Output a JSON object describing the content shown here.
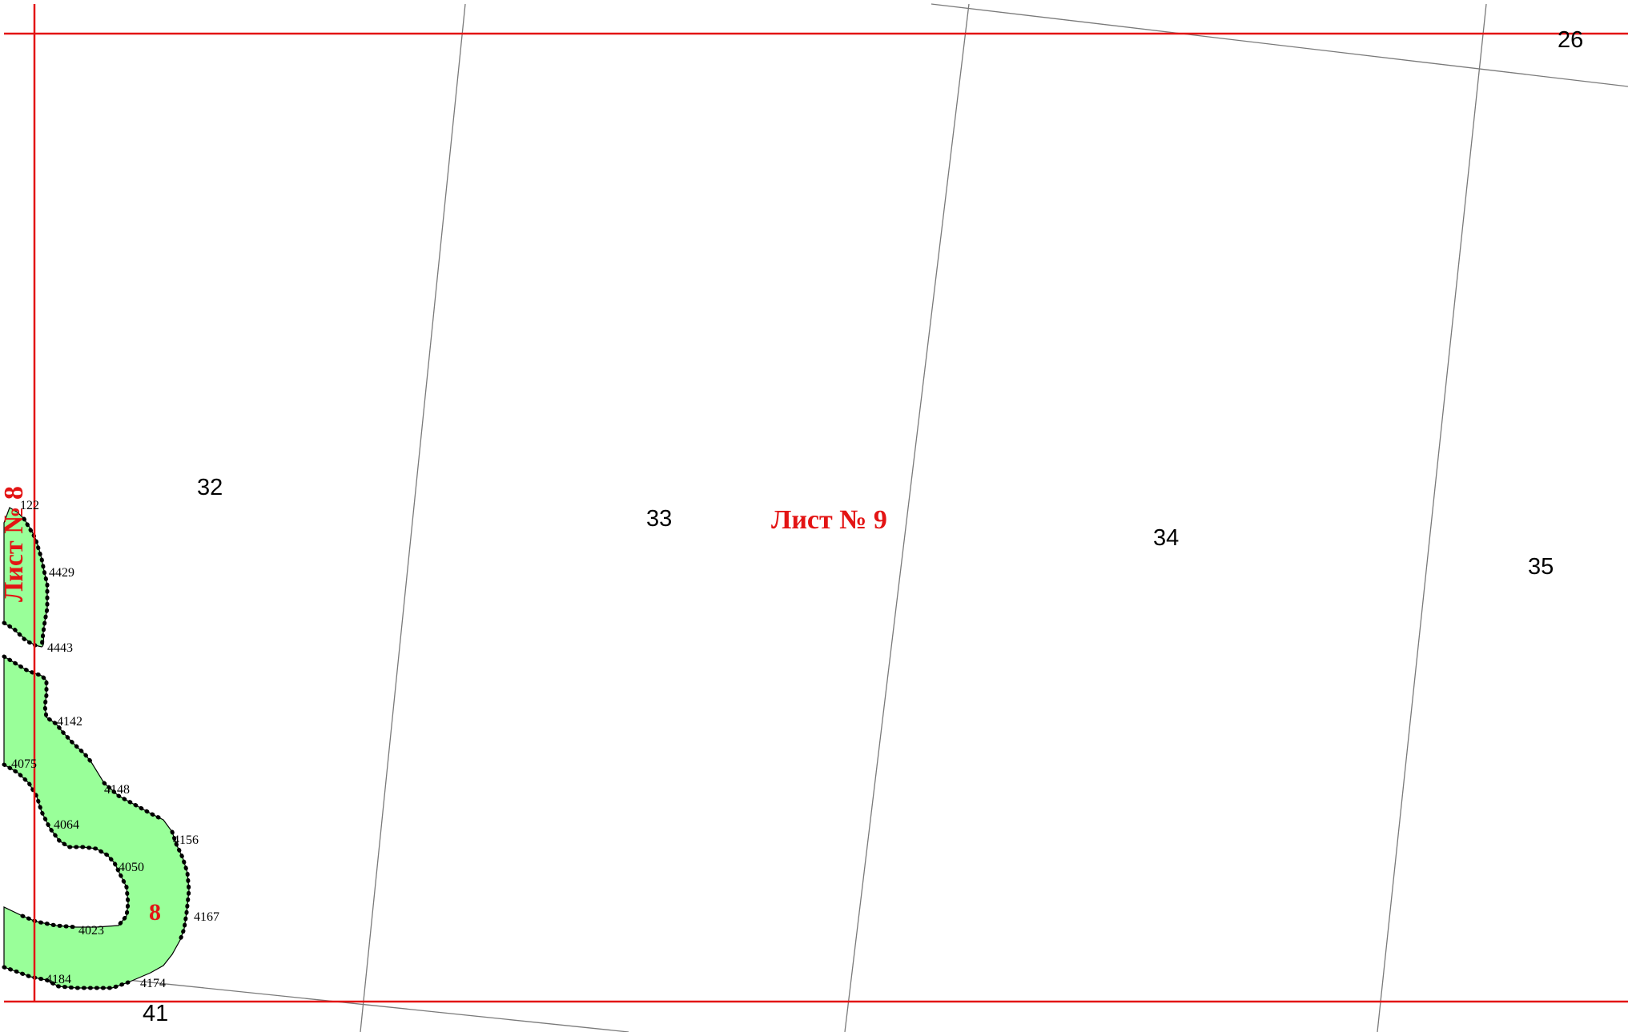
{
  "map": {
    "sheet_current": "Лист № 9",
    "sheet_adjacent": "Лист № 8",
    "contour_number": "8",
    "colors": {
      "sheet_frame": "#e31414",
      "sheet_text": "#e31414",
      "contour_fill": "#99ff99",
      "boundary": "#000000",
      "grid_line": "#7a7a7a"
    },
    "quarters": [
      "26",
      "32",
      "33",
      "34",
      "35",
      "41"
    ],
    "point_labels": [
      "122",
      "4429",
      "4443",
      "4142",
      "4075",
      "4148",
      "4064",
      "4156",
      "4050",
      "4167",
      "4023",
      "4184",
      "4174"
    ]
  }
}
